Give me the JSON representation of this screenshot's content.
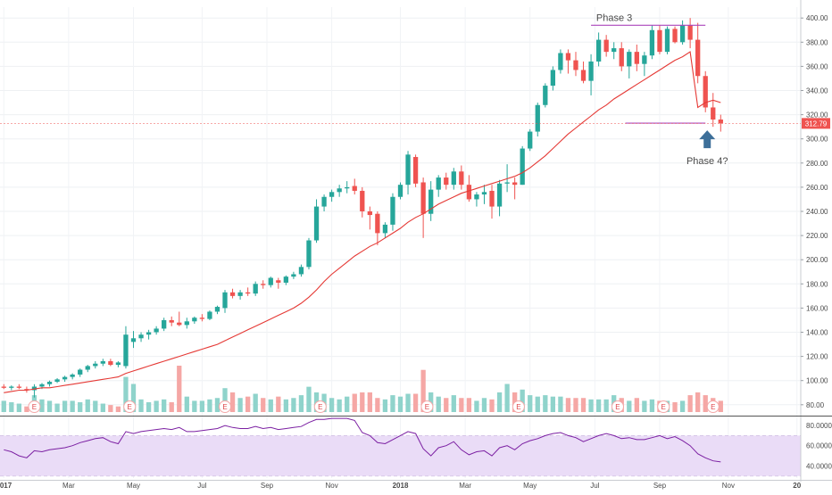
{
  "chart_data": {
    "type": "candlestick",
    "colors": {
      "up": "#26a69a",
      "down": "#ef5350",
      "up_volume": "#8fd3cb",
      "down_volume": "#f5a7a5",
      "ma_line": "#e53935",
      "rsi_line": "#7b1fa2",
      "rsi_band": "#eadcf7",
      "annotation_line": "#ab47bc",
      "arrow": "#3d6f99",
      "price_line": "#ef5350"
    },
    "y_axis": {
      "ticks": [
        "400.00",
        "380.00",
        "360.00",
        "340.00",
        "320.00",
        "300.00",
        "280.00",
        "260.00",
        "240.00",
        "220.00",
        "200.00",
        "180.00",
        "160.00",
        "140.00",
        "120.00",
        "100.00",
        "80.00"
      ],
      "tick_values": [
        400,
        380,
        360,
        340,
        320,
        300,
        280,
        260,
        240,
        220,
        200,
        180,
        160,
        140,
        120,
        100,
        80
      ],
      "ylim": [
        71,
        409
      ]
    },
    "current_price": "312.79",
    "current_price_value": 312.79,
    "rsi_axis": {
      "ticks": [
        "80.0000",
        "60.0000",
        "40.0000"
      ],
      "tick_values": [
        80,
        60,
        40
      ],
      "ylim": [
        28,
        88
      ],
      "band": [
        30,
        70
      ]
    },
    "x_axis": {
      "ticks": [
        "2017",
        "Mar",
        "May",
        "Jul",
        "Sep",
        "Nov",
        "2018",
        "Mar",
        "May",
        "Jul",
        "Sep",
        "Nov",
        "20"
      ],
      "tick_positions": [
        0,
        8.5,
        17,
        26,
        34.5,
        43,
        52,
        60.5,
        69,
        77.5,
        86,
        95,
        104
      ],
      "range": [
        -0.5,
        104.5
      ]
    },
    "annotations": {
      "phase3": "Phase 3",
      "phase4": "Phase 4?",
      "phase3_level": 394,
      "phase4_level": 313,
      "phase3_span": [
        77,
        92
      ],
      "phase4_span": [
        81.5,
        92
      ],
      "arrow_week": 92
    },
    "earnings_badge": "E",
    "earnings_weeks": [
      4,
      16.5,
      29,
      41.5,
      55.5,
      67.5,
      80.5,
      86.5,
      93
    ],
    "ohlc": [
      [
        95,
        97,
        93,
        94
      ],
      [
        94,
        96,
        92,
        95
      ],
      [
        95,
        97,
        93,
        94
      ],
      [
        93,
        95,
        90,
        92
      ],
      [
        92,
        97,
        86,
        95
      ],
      [
        95,
        98,
        93,
        97
      ],
      [
        97,
        100,
        95,
        99
      ],
      [
        99,
        102,
        98,
        101
      ],
      [
        101,
        104,
        99,
        103
      ],
      [
        103,
        106,
        101,
        105
      ],
      [
        105,
        110,
        103,
        109
      ],
      [
        109,
        113,
        107,
        112
      ],
      [
        112,
        116,
        110,
        114
      ],
      [
        114,
        118,
        112,
        116
      ],
      [
        116,
        118,
        112,
        113
      ],
      [
        113,
        116,
        111,
        115
      ],
      [
        112,
        145,
        110,
        138
      ],
      [
        132,
        141,
        127,
        135
      ],
      [
        135,
        140,
        132,
        138
      ],
      [
        138,
        142,
        134,
        140
      ],
      [
        140,
        145,
        138,
        143
      ],
      [
        143,
        152,
        141,
        150
      ],
      [
        150,
        153,
        145,
        148
      ],
      [
        148,
        157,
        145,
        146
      ],
      [
        146,
        152,
        143,
        149
      ],
      [
        149,
        153,
        147,
        152
      ],
      [
        152,
        155,
        149,
        151
      ],
      [
        151,
        158,
        150,
        157
      ],
      [
        157,
        162,
        155,
        161
      ],
      [
        160,
        175,
        156,
        173
      ],
      [
        173,
        176,
        168,
        170
      ],
      [
        170,
        175,
        167,
        173
      ],
      [
        173,
        177,
        170,
        172
      ],
      [
        172,
        182,
        170,
        180
      ],
      [
        180,
        183,
        176,
        179
      ],
      [
        179,
        186,
        177,
        185
      ],
      [
        183,
        185,
        176,
        181
      ],
      [
        181,
        187,
        179,
        186
      ],
      [
        186,
        190,
        184,
        188
      ],
      [
        188,
        196,
        186,
        194
      ],
      [
        194,
        218,
        192,
        216
      ],
      [
        216,
        250,
        214,
        244
      ],
      [
        244,
        254,
        240,
        252
      ],
      [
        252,
        258,
        248,
        256
      ],
      [
        256,
        262,
        252,
        259
      ],
      [
        259,
        265,
        255,
        260
      ],
      [
        261,
        267,
        254,
        257
      ],
      [
        257,
        260,
        235,
        240
      ],
      [
        240,
        244,
        225,
        237
      ],
      [
        238,
        240,
        212,
        222
      ],
      [
        222,
        231,
        218,
        229
      ],
      [
        229,
        255,
        224,
        252
      ],
      [
        252,
        264,
        250,
        262
      ],
      [
        262,
        290,
        254,
        287
      ],
      [
        285,
        287,
        260,
        263
      ],
      [
        264,
        268,
        218,
        238
      ],
      [
        238,
        265,
        232,
        258
      ],
      [
        258,
        270,
        252,
        268
      ],
      [
        268,
        272,
        258,
        262
      ],
      [
        262,
        276,
        258,
        273
      ],
      [
        273,
        278,
        258,
        262
      ],
      [
        262,
        270,
        248,
        250
      ],
      [
        250,
        256,
        244,
        254
      ],
      [
        254,
        262,
        246,
        256
      ],
      [
        257,
        262,
        234,
        244
      ],
      [
        244,
        266,
        236,
        263
      ],
      [
        263,
        279,
        256,
        264
      ],
      [
        264,
        268,
        250,
        262
      ],
      [
        262,
        294,
        262,
        292
      ],
      [
        292,
        308,
        290,
        306
      ],
      [
        306,
        330,
        302,
        328
      ],
      [
        328,
        346,
        326,
        344
      ],
      [
        344,
        360,
        340,
        357
      ],
      [
        357,
        374,
        354,
        371
      ],
      [
        371,
        374,
        354,
        365
      ],
      [
        365,
        372,
        352,
        357
      ],
      [
        357,
        364,
        346,
        348
      ],
      [
        348,
        370,
        336,
        364
      ],
      [
        364,
        388,
        360,
        382
      ],
      [
        382,
        386,
        368,
        372
      ],
      [
        372,
        380,
        366,
        375
      ],
      [
        375,
        380,
        356,
        360
      ],
      [
        360,
        374,
        350,
        372
      ],
      [
        372,
        378,
        356,
        362
      ],
      [
        362,
        372,
        352,
        369
      ],
      [
        369,
        394,
        366,
        390
      ],
      [
        390,
        394,
        370,
        372
      ],
      [
        372,
        393,
        370,
        391
      ],
      [
        391,
        393,
        379,
        380
      ],
      [
        380,
        398,
        378,
        394
      ],
      [
        394,
        400,
        375,
        382
      ],
      [
        382,
        396,
        346,
        352
      ],
      [
        352,
        356,
        322,
        326
      ],
      [
        326,
        338,
        310,
        316
      ],
      [
        316,
        320,
        306,
        312.79
      ]
    ],
    "volume": [
      [
        8,
        "up"
      ],
      [
        7,
        "up"
      ],
      [
        6,
        "up"
      ],
      [
        4,
        "down"
      ],
      [
        12,
        "up"
      ],
      [
        9,
        "up"
      ],
      [
        8,
        "up"
      ],
      [
        6,
        "up"
      ],
      [
        8,
        "up"
      ],
      [
        8,
        "up"
      ],
      [
        7,
        "up"
      ],
      [
        9,
        "up"
      ],
      [
        8,
        "up"
      ],
      [
        6,
        "up"
      ],
      [
        5,
        "down"
      ],
      [
        4,
        "down"
      ],
      [
        25,
        "up"
      ],
      [
        20,
        "up"
      ],
      [
        9,
        "up"
      ],
      [
        7,
        "up"
      ],
      [
        8,
        "up"
      ],
      [
        9,
        "up"
      ],
      [
        7,
        "down"
      ],
      [
        33,
        "down"
      ],
      [
        11,
        "up"
      ],
      [
        8,
        "up"
      ],
      [
        8,
        "up"
      ],
      [
        9,
        "up"
      ],
      [
        10,
        "up"
      ],
      [
        17,
        "up"
      ],
      [
        14,
        "down"
      ],
      [
        10,
        "up"
      ],
      [
        11,
        "down"
      ],
      [
        13,
        "up"
      ],
      [
        10,
        "down"
      ],
      [
        9,
        "up"
      ],
      [
        11,
        "down"
      ],
      [
        9,
        "up"
      ],
      [
        10,
        "up"
      ],
      [
        12,
        "up"
      ],
      [
        18,
        "up"
      ],
      [
        14,
        "up"
      ],
      [
        13,
        "up"
      ],
      [
        10,
        "up"
      ],
      [
        9,
        "up"
      ],
      [
        11,
        "up"
      ],
      [
        13,
        "down"
      ],
      [
        14,
        "down"
      ],
      [
        14,
        "down"
      ],
      [
        10,
        "down"
      ],
      [
        9,
        "up"
      ],
      [
        12,
        "up"
      ],
      [
        11,
        "up"
      ],
      [
        13,
        "up"
      ],
      [
        13,
        "down"
      ],
      [
        30,
        "down"
      ],
      [
        14,
        "up"
      ],
      [
        11,
        "up"
      ],
      [
        10,
        "down"
      ],
      [
        12,
        "up"
      ],
      [
        10,
        "down"
      ],
      [
        10,
        "down"
      ],
      [
        8,
        "up"
      ],
      [
        10,
        "up"
      ],
      [
        9,
        "down"
      ],
      [
        14,
        "up"
      ],
      [
        20,
        "up"
      ],
      [
        14,
        "down"
      ],
      [
        16,
        "up"
      ],
      [
        12,
        "up"
      ],
      [
        11,
        "up"
      ],
      [
        12,
        "up"
      ],
      [
        11,
        "up"
      ],
      [
        11,
        "up"
      ],
      [
        10,
        "down"
      ],
      [
        10,
        "down"
      ],
      [
        10,
        "down"
      ],
      [
        9,
        "up"
      ],
      [
        9,
        "up"
      ],
      [
        9,
        "up"
      ],
      [
        12,
        "up"
      ],
      [
        10,
        "down"
      ],
      [
        8,
        "up"
      ],
      [
        10,
        "down"
      ],
      [
        8,
        "up"
      ],
      [
        9,
        "up"
      ],
      [
        8,
        "down"
      ],
      [
        8,
        "up"
      ],
      [
        7,
        "down"
      ],
      [
        8,
        "up"
      ],
      [
        12,
        "down"
      ],
      [
        14,
        "down"
      ],
      [
        12,
        "down"
      ],
      [
        10,
        "down"
      ],
      [
        8,
        "down"
      ]
    ],
    "ma": [
      90,
      91,
      92,
      92,
      93,
      94,
      94,
      95,
      96,
      97,
      98,
      99,
      100,
      101,
      102,
      103,
      106,
      108,
      110,
      112,
      114,
      116,
      118,
      120,
      122,
      124,
      126,
      128,
      130,
      133,
      136,
      139,
      142,
      145,
      148,
      151,
      154,
      157,
      160,
      164,
      169,
      175,
      182,
      188,
      193,
      198,
      203,
      207,
      211,
      214,
      218,
      222,
      226,
      231,
      235,
      238,
      242,
      246,
      249,
      252,
      255,
      257,
      259,
      261,
      263,
      265,
      267,
      269,
      272,
      276,
      281,
      286,
      292,
      298,
      304,
      309,
      314,
      319,
      324,
      328,
      333,
      337,
      341,
      345,
      349,
      353,
      357,
      361,
      365,
      368,
      372,
      326,
      330,
      332,
      330
    ],
    "rsi": [
      56,
      54,
      50,
      48,
      55,
      54,
      56,
      57,
      58,
      60,
      63,
      65,
      67,
      68,
      64,
      62,
      74,
      72,
      74,
      75,
      76,
      77,
      76,
      78,
      74,
      74,
      75,
      76,
      77,
      80,
      78,
      77,
      77,
      79,
      77,
      78,
      76,
      77,
      78,
      79,
      83,
      86,
      86,
      87,
      87,
      87,
      85,
      73,
      70,
      63,
      62,
      66,
      70,
      74,
      72,
      57,
      50,
      58,
      60,
      64,
      56,
      51,
      54,
      55,
      50,
      58,
      60,
      56,
      62,
      65,
      67,
      70,
      72,
      73,
      70,
      68,
      64,
      67,
      70,
      72,
      70,
      67,
      68,
      66,
      66,
      68,
      70,
      67,
      69,
      65,
      60,
      52,
      48,
      45,
      44
    ]
  }
}
